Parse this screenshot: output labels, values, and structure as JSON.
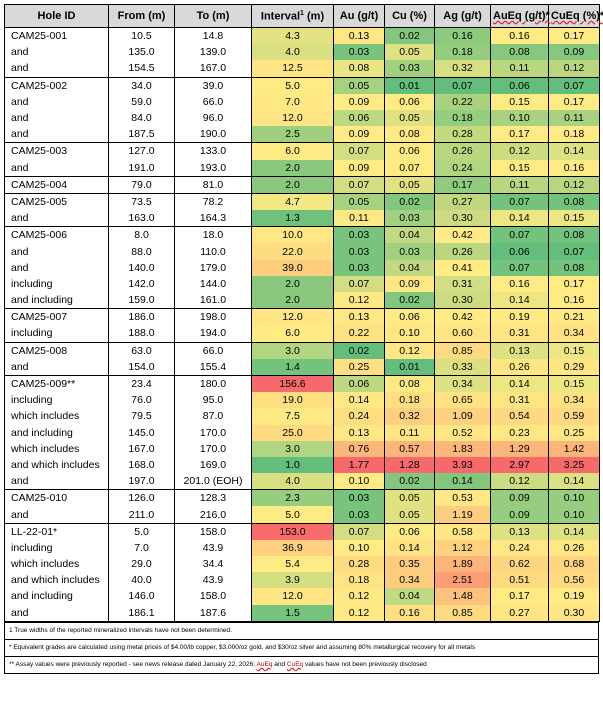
{
  "headers": [
    "Hole ID",
    "From (m)",
    "To (m)",
    "Interval",
    "Au (g/t)",
    "Cu (%)",
    "Ag (g/t)",
    "AuEq (g/t)*",
    "CuEq (%)*"
  ],
  "interval_sup": "1",
  "interval_suffix": " (m)",
  "rows": [
    {
      "id": "CAM25-001",
      "from": "10.5",
      "to": "14.8",
      "interval": "4.3",
      "au": "0.13",
      "cu": "0.02",
      "ag": "0.16",
      "aueq": "0.16",
      "cueq": "0.17",
      "group_start": true
    },
    {
      "id": "and",
      "from": "135.0",
      "to": "139.0",
      "interval": "4.0",
      "au": "0.03",
      "cu": "0.05",
      "ag": "0.18",
      "aueq": "0.08",
      "cueq": "0.09"
    },
    {
      "id": "and",
      "from": "154.5",
      "to": "167.0",
      "interval": "12.5",
      "au": "0.08",
      "cu": "0.03",
      "ag": "0.32",
      "aueq": "0.11",
      "cueq": "0.12"
    },
    {
      "id": "CAM25-002",
      "from": "34.0",
      "to": "39.0",
      "interval": "5.0",
      "au": "0.05",
      "cu": "0.01",
      "ag": "0.07",
      "aueq": "0.06",
      "cueq": "0.07",
      "group_start": true
    },
    {
      "id": "and",
      "from": "59.0",
      "to": "66.0",
      "interval": "7.0",
      "au": "0.09",
      "cu": "0.06",
      "ag": "0.22",
      "aueq": "0.15",
      "cueq": "0.17"
    },
    {
      "id": "and",
      "from": "84.0",
      "to": "96.0",
      "interval": "12.0",
      "au": "0.06",
      "cu": "0.05",
      "ag": "0.18",
      "aueq": "0.10",
      "cueq": "0.11"
    },
    {
      "id": "and",
      "from": "187.5",
      "to": "190.0",
      "interval": "2.5",
      "au": "0.09",
      "cu": "0.08",
      "ag": "0.28",
      "aueq": "0.17",
      "cueq": "0.18"
    },
    {
      "id": "CAM25-003",
      "from": "127.0",
      "to": "133.0",
      "interval": "6.0",
      "au": "0.07",
      "cu": "0.06",
      "ag": "0.26",
      "aueq": "0.12",
      "cueq": "0.14",
      "group_start": true
    },
    {
      "id": "and",
      "from": "191.0",
      "to": "193.0",
      "interval": "2.0",
      "au": "0.09",
      "cu": "0.07",
      "ag": "0.24",
      "aueq": "0.15",
      "cueq": "0.16"
    },
    {
      "id": "CAM25-004",
      "from": "79.0",
      "to": "81.0",
      "interval": "2.0",
      "au": "0.07",
      "cu": "0.05",
      "ag": "0.17",
      "aueq": "0.11",
      "cueq": "0.12",
      "group_start": true
    },
    {
      "id": "CAM25-005",
      "from": "73.5",
      "to": "78.2",
      "interval": "4.7",
      "au": "0.05",
      "cu": "0.02",
      "ag": "0.27",
      "aueq": "0.07",
      "cueq": "0.08",
      "group_start": true
    },
    {
      "id": "and",
      "from": "163.0",
      "to": "164.3",
      "interval": "1.3",
      "au": "0.11",
      "cu": "0.03",
      "ag": "0.30",
      "aueq": "0.14",
      "cueq": "0.15"
    },
    {
      "id": "CAM25-006",
      "from": "8.0",
      "to": "18.0",
      "interval": "10.0",
      "au": "0.03",
      "cu": "0.04",
      "ag": "0.42",
      "aueq": "0.07",
      "cueq": "0.08",
      "group_start": true
    },
    {
      "id": "and",
      "from": "88.0",
      "to": "110.0",
      "interval": "22.0",
      "au": "0.03",
      "cu": "0.03",
      "ag": "0.26",
      "aueq": "0.06",
      "cueq": "0.07"
    },
    {
      "id": "and",
      "from": "140.0",
      "to": "179.0",
      "interval": "39.0",
      "au": "0.03",
      "cu": "0.04",
      "ag": "0.41",
      "aueq": "0.07",
      "cueq": "0.08"
    },
    {
      "id": "including",
      "from": "142.0",
      "to": "144.0",
      "interval": "2.0",
      "au": "0.07",
      "cu": "0.09",
      "ag": "0.31",
      "aueq": "0.16",
      "cueq": "0.17"
    },
    {
      "id": "and including",
      "from": "159.0",
      "to": "161.0",
      "interval": "2.0",
      "au": "0.12",
      "cu": "0.02",
      "ag": "0.30",
      "aueq": "0.14",
      "cueq": "0.16"
    },
    {
      "id": "CAM25-007",
      "from": "186.0",
      "to": "198.0",
      "interval": "12.0",
      "au": "0.13",
      "cu": "0.06",
      "ag": "0.42",
      "aueq": "0.19",
      "cueq": "0.21",
      "group_start": true
    },
    {
      "id": "including",
      "from": "188.0",
      "to": "194.0",
      "interval": "6.0",
      "au": "0.22",
      "cu": "0.10",
      "ag": "0.60",
      "aueq": "0.31",
      "cueq": "0.34"
    },
    {
      "id": "CAM25-008",
      "from": "63.0",
      "to": "66.0",
      "interval": "3.0",
      "au": "0.02",
      "cu": "0.12",
      "ag": "0.85",
      "aueq": "0.13",
      "cueq": "0.15",
      "group_start": true
    },
    {
      "id": "and",
      "from": "154.0",
      "to": "155.4",
      "interval": "1.4",
      "au": "0.25",
      "cu": "0.01",
      "ag": "0.33",
      "aueq": "0.26",
      "cueq": "0.29"
    },
    {
      "id": "CAM25-009**",
      "from": "23.4",
      "to": "180.0",
      "interval": "156.6",
      "au": "0.06",
      "cu": "0.08",
      "ag": "0.34",
      "aueq": "0.14",
      "cueq": "0.15",
      "group_start": true
    },
    {
      "id": "including",
      "from": "76.0",
      "to": "95.0",
      "interval": "19.0",
      "au": "0.14",
      "cu": "0.18",
      "ag": "0.65",
      "aueq": "0.31",
      "cueq": "0.34"
    },
    {
      "id": "which includes",
      "from": "79.5",
      "to": "87.0",
      "interval": "7.5",
      "au": "0.24",
      "cu": "0.32",
      "ag": "1.09",
      "aueq": "0.54",
      "cueq": "0.59"
    },
    {
      "id": "and including",
      "from": "145.0",
      "to": "170.0",
      "interval": "25.0",
      "au": "0.13",
      "cu": "0.11",
      "ag": "0.52",
      "aueq": "0.23",
      "cueq": "0.25"
    },
    {
      "id": "which includes",
      "from": "167.0",
      "to": "170.0",
      "interval": "3.0",
      "au": "0.76",
      "cu": "0.57",
      "ag": "1.83",
      "aueq": "1.29",
      "cueq": "1.42"
    },
    {
      "id": "and which includes",
      "from": "168.0",
      "to": "169.0",
      "interval": "1.0",
      "au": "1.77",
      "cu": "1.28",
      "ag": "3.93",
      "aueq": "2.97",
      "cueq": "3.25"
    },
    {
      "id": "and",
      "from": "197.0",
      "to": "201.0 (EOH)",
      "interval": "4.0",
      "au": "0.10",
      "cu": "0.02",
      "ag": "0.14",
      "aueq": "0.12",
      "cueq": "0.14"
    },
    {
      "id": "CAM25-010",
      "from": "126.0",
      "to": "128.3",
      "interval": "2.3",
      "au": "0.03",
      "cu": "0.05",
      "ag": "0.53",
      "aueq": "0.09",
      "cueq": "0.10",
      "group_start": true
    },
    {
      "id": "and",
      "from": "211.0",
      "to": "216.0",
      "interval": "5.0",
      "au": "0.03",
      "cu": "0.05",
      "ag": "1.19",
      "aueq": "0.09",
      "cueq": "0.10"
    },
    {
      "id": "LL-22-01*",
      "from": "5.0",
      "to": "158.0",
      "interval": "153.0",
      "au": "0.07",
      "cu": "0.06",
      "ag": "0.58",
      "aueq": "0.13",
      "cueq": "0.14",
      "group_start": true
    },
    {
      "id": "including",
      "from": "7.0",
      "to": "43.9",
      "interval": "36.9",
      "au": "0.10",
      "cu": "0.14",
      "ag": "1.12",
      "aueq": "0.24",
      "cueq": "0.26"
    },
    {
      "id": "which includes",
      "from": "29.0",
      "to": "34.4",
      "interval": "5.4",
      "au": "0.28",
      "cu": "0.35",
      "ag": "1.89",
      "aueq": "0.62",
      "cueq": "0.68"
    },
    {
      "id": "and which includes",
      "from": "40.0",
      "to": "43.9",
      "interval": "3.9",
      "au": "0.18",
      "cu": "0.34",
      "ag": "2.51",
      "aueq": "0.51",
      "cueq": "0.56"
    },
    {
      "id": "and including",
      "from": "146.0",
      "to": "158.0",
      "interval": "12.0",
      "au": "0.12",
      "cu": "0.04",
      "ag": "1.48",
      "aueq": "0.17",
      "cueq": "0.19"
    },
    {
      "id": "and",
      "from": "186.1",
      "to": "187.6",
      "interval": "1.5",
      "au": "0.12",
      "cu": "0.16",
      "ag": "0.85",
      "aueq": "0.27",
      "cueq": "0.30",
      "last": true
    }
  ],
  "notes": {
    "note1": "1 True widths of the reported mineralized intervals have not been determined.",
    "note2": "* Equivalent grades are calculated using metal prices of $4.00/lb copper, $3,000/oz gold, and $30/oz silver and assuming 80% metallurgical recovery for all metals",
    "note3_pre": "** Assay values were previously reported - see news release dated January 22, 2026; ",
    "note3_aueq": "AuEq",
    "note3_mid": " and ",
    "note3_cueq": "CuEq",
    "note3_post": " values have not been previously disclosed"
  },
  "colors": {
    "header_bg": "#d9d9d9",
    "scale_low": "#63be7b",
    "scale_mid": "#ffeb84",
    "scale_high": "#f8696b"
  }
}
